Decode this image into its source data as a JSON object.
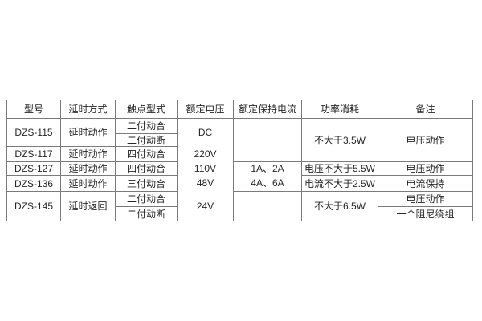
{
  "table": {
    "headers": [
      "型号",
      "延时方式",
      "触点型式",
      "额定电压",
      "额定保持电流",
      "功率消耗",
      "备注"
    ],
    "rows": {
      "models": [
        "DZS-115",
        "DZS-117",
        "DZS-127",
        "DZS-136",
        "DZS-145"
      ],
      "delay_modes": [
        "延时动作",
        "延时动作",
        "延时动作",
        "延时动作",
        "延时返回"
      ],
      "contact_types": [
        "二付动合",
        "二付动断",
        "四付动合",
        "四付动合",
        "三付动合",
        "二付动合",
        "二付动断"
      ],
      "rated_voltages": [
        "DC",
        "220V",
        "110V",
        "48V",
        "24V"
      ],
      "holding_currents": [
        "1A、2A",
        "4A、6A"
      ],
      "power_consumption": [
        "不大于3.5W",
        "电压不大于5.5W",
        "电流不大于2.5W",
        "不大于6.5W"
      ],
      "remarks": [
        "电压动作",
        "电压动作",
        "电流保持",
        "电压动作",
        "一个阻尼绕组"
      ]
    },
    "colors": {
      "border": "#7a7a7a",
      "text": "#262626",
      "background": "#ffffff"
    }
  }
}
